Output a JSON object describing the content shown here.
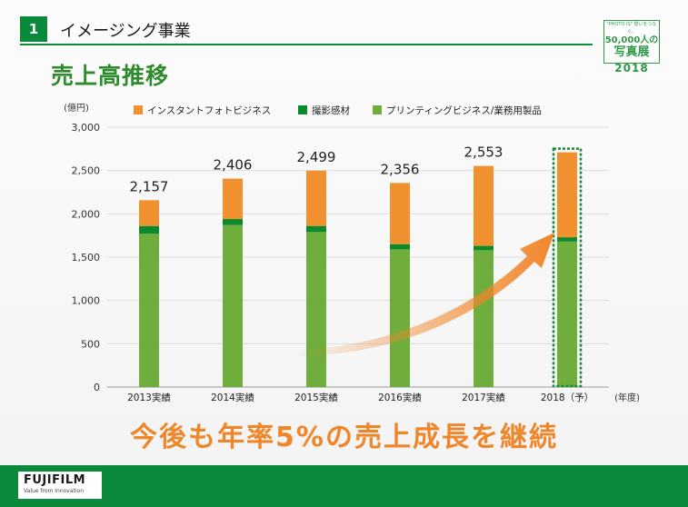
{
  "header": {
    "number": "1",
    "section_title": "イメージング事業"
  },
  "page_title": "売上高推移",
  "event_badge": {
    "line1": "\"PHOTO IS\" 想いをつなぐ。",
    "line2": "50,000人の",
    "line3": "写真展",
    "year": "2018"
  },
  "tagline": "今後も年率5%の売上成長を継続",
  "footer": {
    "brand": "FUJIFILM",
    "slogan": "Value from Innovation"
  },
  "colors": {
    "instant": "#f0902e",
    "film": "#0a8a2a",
    "printing": "#6fae3c",
    "arrow": "#f0862a",
    "brand_green": "#0a8a3a"
  },
  "chart_data": {
    "type": "bar",
    "stacked": true,
    "unit_label": "(億円)",
    "x_unit_label": "(年度)",
    "categories": [
      "2013実績",
      "2014実績",
      "2015実績",
      "2016実績",
      "2017実績",
      "2018（予）"
    ],
    "totals": [
      "2,157",
      "2,406",
      "2,499",
      "2,356",
      "2,553",
      ""
    ],
    "series": [
      {
        "name": "プリンティングビジネス/業務用製品",
        "values": [
          1770,
          1870,
          1790,
          1590,
          1580,
          1680
        ]
      },
      {
        "name": "撮影感材",
        "values": [
          90,
          70,
          70,
          60,
          50,
          50
        ]
      },
      {
        "name": "インスタントフォトビジネス",
        "values": [
          297,
          466,
          639,
          706,
          923,
          980
        ]
      }
    ],
    "forecast_index": 5,
    "ylim": [
      0,
      3000
    ],
    "yticks": [
      "0",
      "500",
      "1,000",
      "1,500",
      "2,000",
      "2,500",
      "3,000"
    ],
    "grid": true,
    "legend": "top"
  }
}
